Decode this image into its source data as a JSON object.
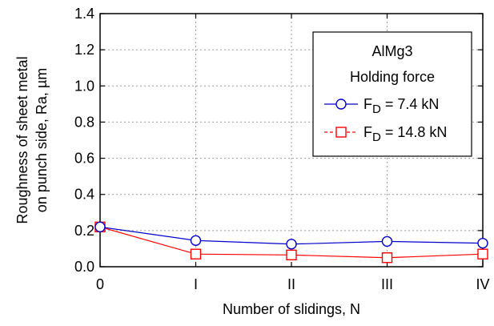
{
  "chart_data": {
    "type": "line",
    "categories": [
      "0",
      "I",
      "II",
      "III",
      "IV"
    ],
    "series": [
      {
        "name": "FD = 7.4 kN",
        "label_main": "F",
        "label_sub": "D",
        "label_rest": " = 7.4 kN",
        "color": "#0000cc",
        "marker": "circle",
        "line_style": "solid",
        "values": [
          0.22,
          0.145,
          0.125,
          0.14,
          0.13
        ]
      },
      {
        "name": "FD = 14.8 kN",
        "label_main": "F",
        "label_sub": "D",
        "label_rest": " = 14.8 kN",
        "color": "#ff0000",
        "marker": "square",
        "line_style": "dashed",
        "values": [
          0.22,
          0.07,
          0.065,
          0.05,
          0.07
        ]
      }
    ],
    "xlabel": "Number of slidings, N",
    "ylabel": [
      "Roughness of sheet metal",
      "on punch side, Ra, µm"
    ],
    "ylim": [
      0.0,
      1.4
    ],
    "yticks": [
      "0.0",
      "0.2",
      "0.4",
      "0.6",
      "0.8",
      "1.0",
      "1.2",
      "1.4"
    ],
    "grid": true,
    "legend": {
      "placement": "top-right",
      "title_lines": [
        "AlMg3",
        "Holding force"
      ]
    }
  }
}
